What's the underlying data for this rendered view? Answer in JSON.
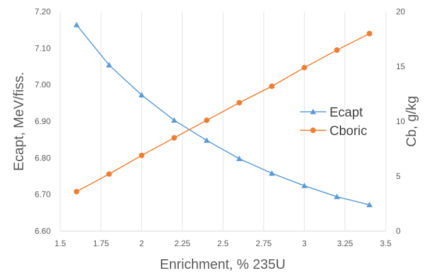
{
  "chart_data": {
    "type": "line",
    "xlabel": "Enrichment, % 235U",
    "ylabel_left": "Ecapt, MeV/fiss.",
    "ylabel_right": "Cb, g/kg",
    "xlim": [
      1.5,
      3.5
    ],
    "ylim_left": [
      6.6,
      7.2
    ],
    "ylim_right": [
      0,
      20
    ],
    "x_ticks": [
      "1.5",
      "1.75",
      "2",
      "2.25",
      "2.5",
      "2.75",
      "3",
      "3.25",
      "3.5"
    ],
    "y_left_ticks": [
      "6.60",
      "6.70",
      "6.80",
      "6.90",
      "7.00",
      "7.10",
      "7.20"
    ],
    "y_right_ticks": [
      "0",
      "5",
      "10",
      "15",
      "20"
    ],
    "grid": "vertical",
    "legend_position": "right",
    "x": [
      1.6,
      1.8,
      2.0,
      2.2,
      2.4,
      2.6,
      2.8,
      3.0,
      3.2,
      3.4
    ],
    "series": [
      {
        "name": "Ecapt",
        "axis": "left",
        "color": "#5b9bd5",
        "marker": "triangle",
        "values": [
          7.164,
          7.054,
          6.972,
          6.903,
          6.848,
          6.798,
          6.758,
          6.724,
          6.694,
          6.672
        ]
      },
      {
        "name": "Cboric",
        "axis": "right",
        "color": "#ed7d31",
        "marker": "circle",
        "values": [
          3.6,
          5.2,
          6.9,
          8.5,
          10.1,
          11.7,
          13.2,
          14.9,
          16.5,
          18.0
        ]
      }
    ]
  }
}
